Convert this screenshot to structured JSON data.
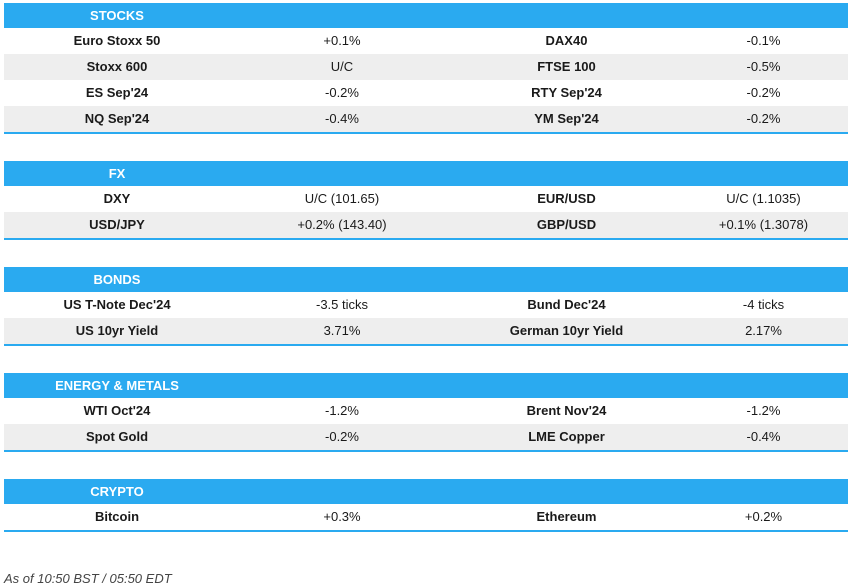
{
  "sections": [
    {
      "title": "STOCKS",
      "rows": [
        [
          "Euro Stoxx 50",
          "+0.1%",
          "DAX40",
          "-0.1%"
        ],
        [
          "Stoxx 600",
          "U/C",
          "FTSE 100",
          "-0.5%"
        ],
        [
          "ES Sep'24",
          "-0.2%",
          "RTY Sep'24",
          "-0.2%"
        ],
        [
          "NQ Sep'24",
          "-0.4%",
          "YM Sep'24",
          "-0.2%"
        ]
      ]
    },
    {
      "title": "FX",
      "rows": [
        [
          "DXY",
          "U/C (101.65)",
          "EUR/USD",
          "U/C (1.1035)"
        ],
        [
          "USD/JPY",
          "+0.2% (143.40)",
          "GBP/USD",
          "+0.1% (1.3078)"
        ]
      ]
    },
    {
      "title": "BONDS",
      "rows": [
        [
          "US T-Note Dec'24",
          "-3.5 ticks",
          "Bund Dec'24",
          "-4 ticks"
        ],
        [
          "US 10yr Yield",
          "3.71%",
          "German 10yr Yield",
          "2.17%"
        ]
      ]
    },
    {
      "title": "ENERGY & METALS",
      "rows": [
        [
          "WTI Oct'24",
          "-1.2%",
          "Brent Nov'24",
          "-1.2%"
        ],
        [
          "Spot Gold",
          "-0.2%",
          "LME Copper",
          "-0.4%"
        ]
      ]
    },
    {
      "title": "CRYPTO",
      "rows": [
        [
          "Bitcoin",
          "+0.3%",
          "Ethereum",
          "+0.2%"
        ]
      ]
    }
  ],
  "footer": "As of 10:50 BST / 05:50 EDT"
}
